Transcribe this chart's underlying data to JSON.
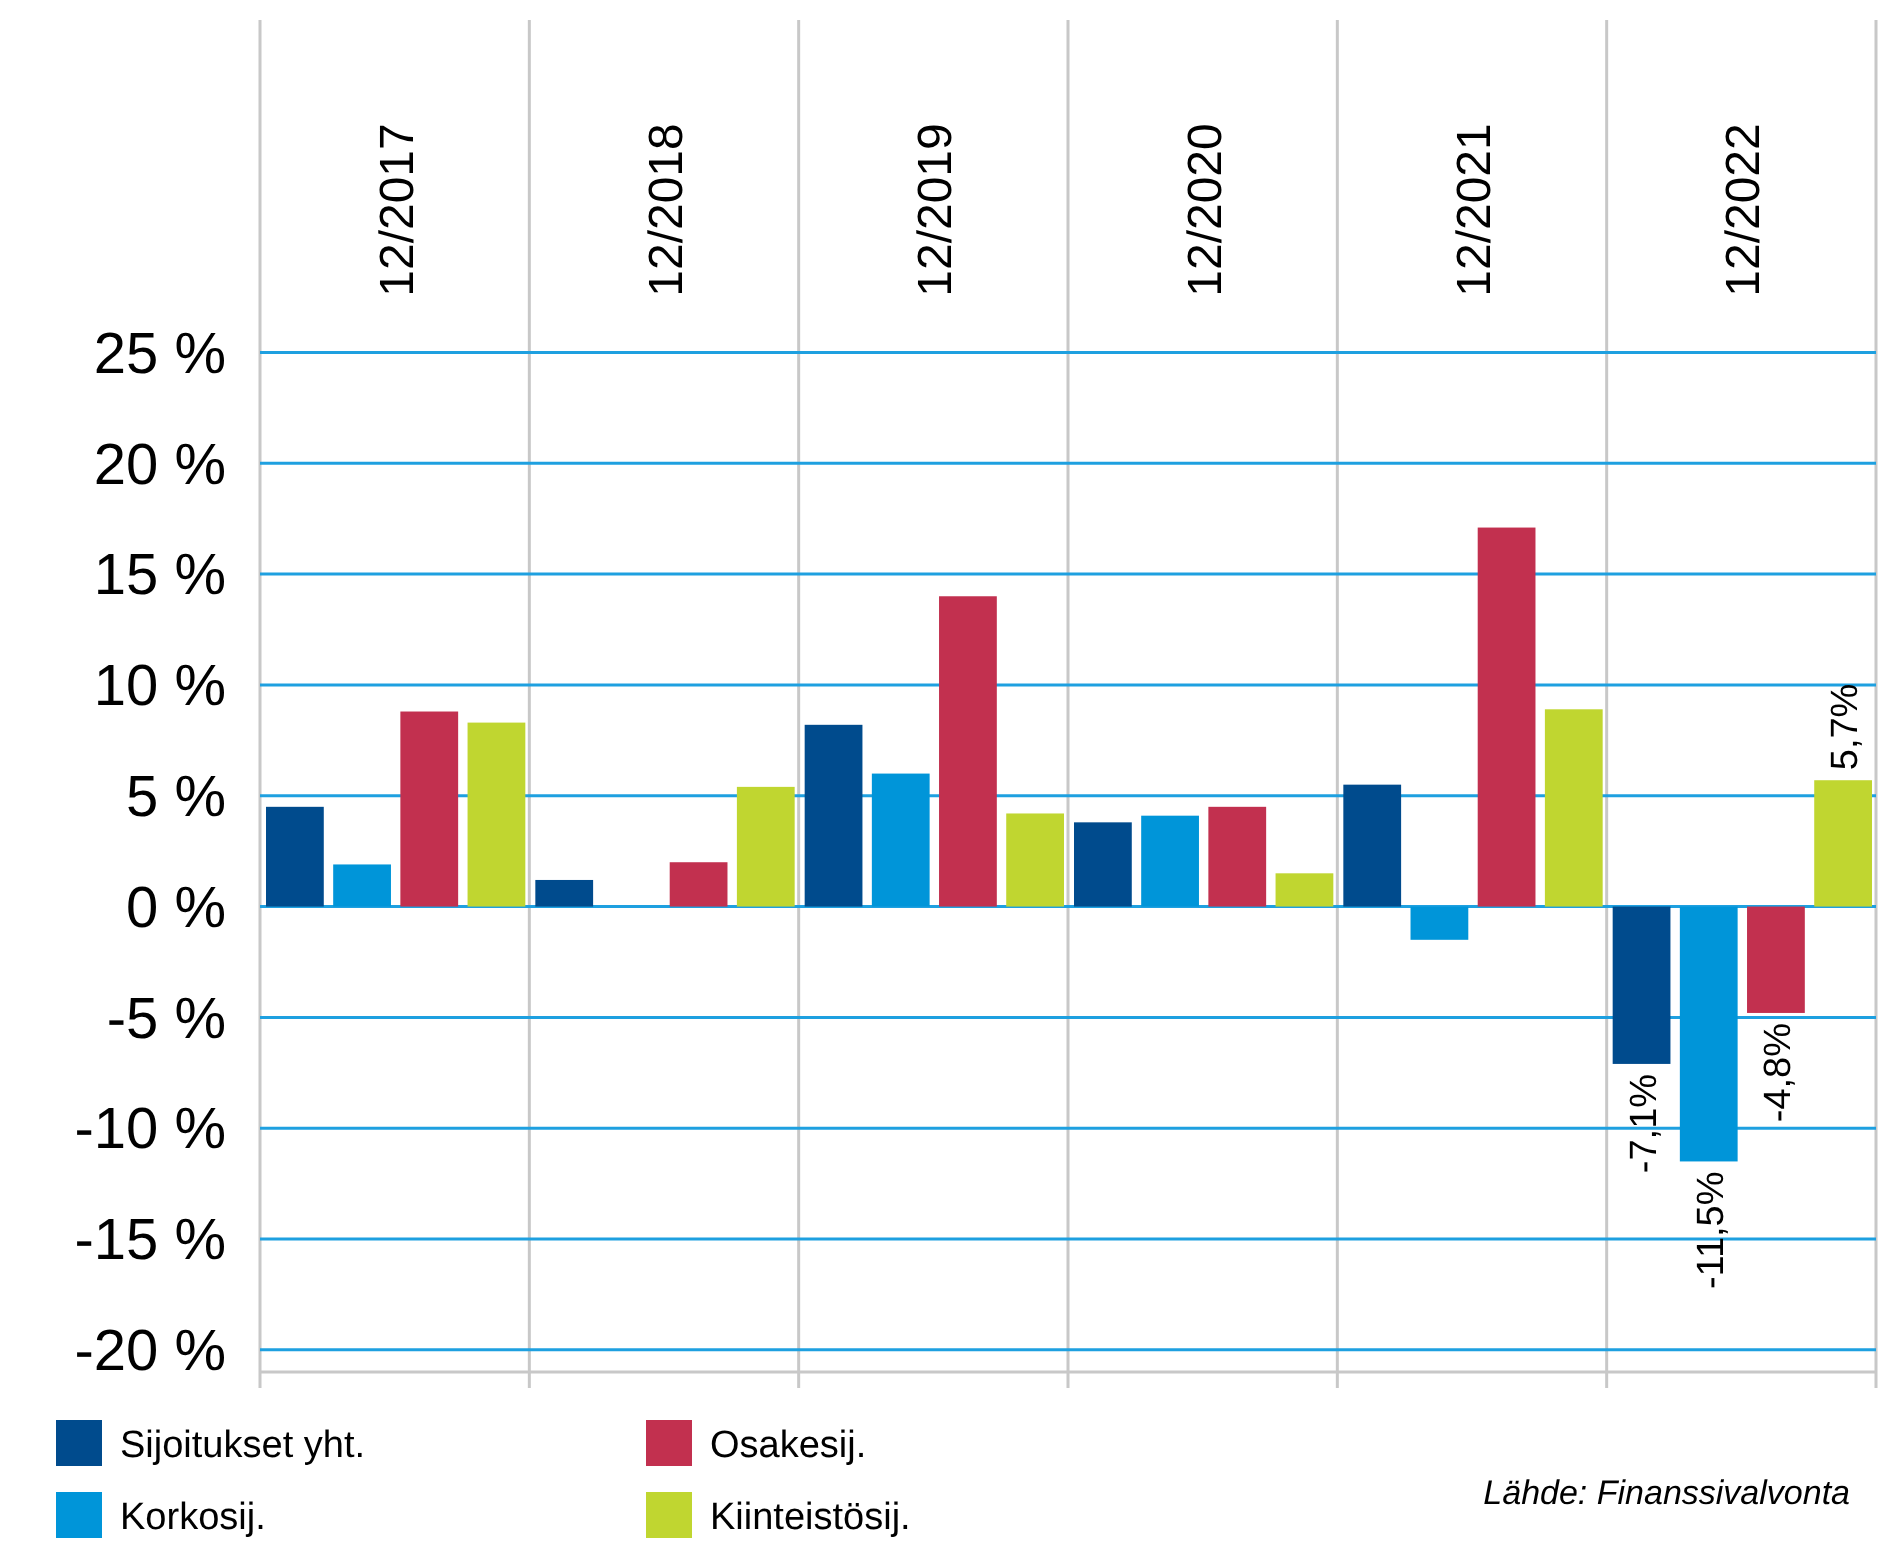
{
  "chart_data": {
    "type": "bar",
    "categories": [
      "12/2017",
      "12/2018",
      "12/2019",
      "12/2020",
      "12/2021",
      "12/2022"
    ],
    "series": [
      {
        "name": "Sijoitukset yht.",
        "color": "#004b8d",
        "values": [
          4.5,
          1.2,
          8.2,
          3.8,
          5.5,
          -7.1
        ],
        "value_labels": [
          null,
          null,
          null,
          null,
          null,
          "-7,1%"
        ]
      },
      {
        "name": "Korkosij.",
        "color": "#0095d9",
        "values": [
          1.9,
          0,
          6.0,
          4.1,
          -1.5,
          -11.5
        ],
        "value_labels": [
          null,
          null,
          null,
          null,
          null,
          "-11,5%"
        ]
      },
      {
        "name": "Osakesij.",
        "color": "#c2304f",
        "values": [
          8.8,
          2.0,
          14.0,
          4.5,
          17.1,
          -4.8
        ],
        "value_labels": [
          null,
          null,
          null,
          null,
          null,
          "-4,8%"
        ]
      },
      {
        "name": "Kiinteistösij.",
        "color": "#c0d630",
        "values": [
          8.3,
          5.4,
          4.2,
          1.5,
          8.9,
          5.7
        ],
        "value_labels": [
          null,
          null,
          null,
          null,
          null,
          "5,7%"
        ]
      }
    ],
    "ylim": [
      -21,
      40
    ],
    "yticks": [
      {
        "value": 25,
        "label": "25 %"
      },
      {
        "value": 20,
        "label": "20 %"
      },
      {
        "value": 15,
        "label": "15 %"
      },
      {
        "value": 10,
        "label": "10 %"
      },
      {
        "value": 5,
        "label": "5 %"
      },
      {
        "value": 0,
        "label": "0 %"
      },
      {
        "value": -5,
        "label": "-5 %"
      },
      {
        "value": -10,
        "label": "-10 %"
      },
      {
        "value": -15,
        "label": "-15 %"
      },
      {
        "value": -20,
        "label": "-20 %"
      }
    ],
    "grid": "y",
    "legend": "bottom",
    "annotations": [
      "Lähde: Finanssivalvonta"
    ]
  }
}
